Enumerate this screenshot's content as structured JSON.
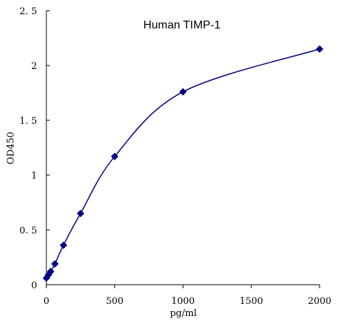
{
  "chart_data": {
    "type": "scatter",
    "title": "Human TIMP-1",
    "xlabel": "pg/ml",
    "ylabel": "OD450",
    "xlim": [
      0,
      2000
    ],
    "ylim": [
      0,
      2.5
    ],
    "x_ticks": [
      0,
      500,
      1000,
      1500,
      2000
    ],
    "x_tick_labels": [
      "0",
      "500",
      "1000",
      "1500",
      "2000"
    ],
    "y_ticks": [
      0,
      0.5,
      1,
      1.5,
      2,
      2.5
    ],
    "y_tick_labels": [
      "0",
      "0. 5",
      "1",
      "1. 5",
      "2",
      "2. 5"
    ],
    "grid": false,
    "legend": "none",
    "series": [
      {
        "color": "#000080",
        "marker": "diamond",
        "smooth_line": true,
        "points": [
          {
            "x": 0,
            "y": 0.06
          },
          {
            "x": 15.6,
            "y": 0.09
          },
          {
            "x": 31.2,
            "y": 0.12
          },
          {
            "x": 62.5,
            "y": 0.19
          },
          {
            "x": 125,
            "y": 0.36
          },
          {
            "x": 250,
            "y": 0.65
          },
          {
            "x": 500,
            "y": 1.17
          },
          {
            "x": 1000,
            "y": 1.76
          },
          {
            "x": 2000,
            "y": 2.15
          }
        ]
      }
    ]
  }
}
